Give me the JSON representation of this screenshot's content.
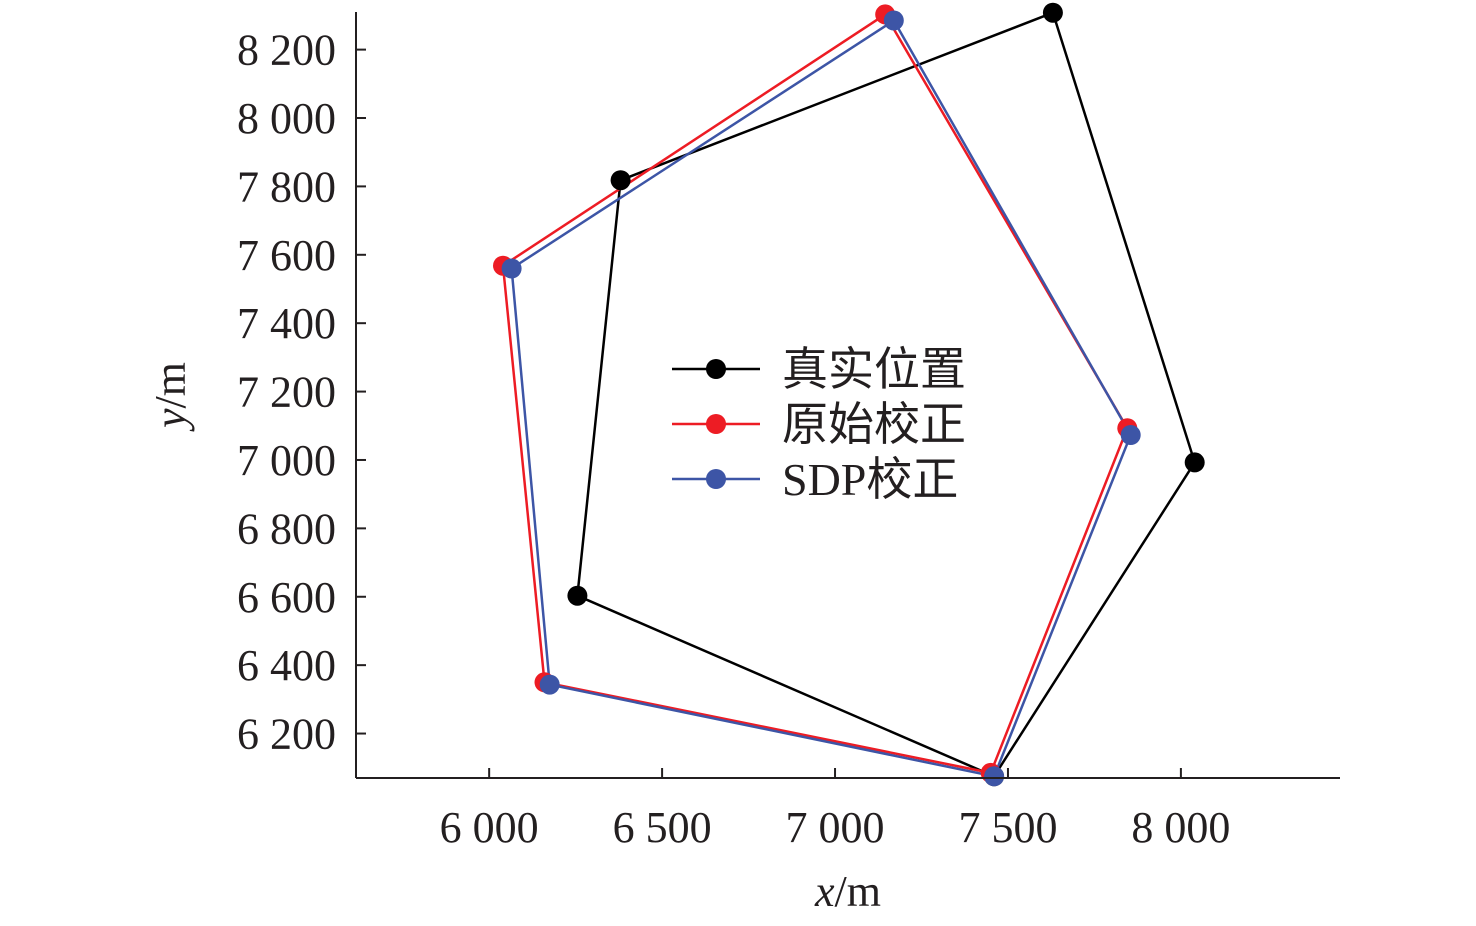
{
  "chart_data": {
    "type": "scatter",
    "xlabel_var": "x",
    "xlabel_unit": "/m",
    "ylabel_var": "y",
    "ylabel_unit": "/m",
    "xlim": [
      5615,
      8460
    ],
    "ylim": [
      6070,
      8310
    ],
    "x_ticks": [
      6000,
      6500,
      7000,
      7500,
      8000
    ],
    "x_tick_labels": [
      "6 000",
      "6 500",
      "7 000",
      "7 500",
      "8 000"
    ],
    "y_ticks": [
      6200,
      6400,
      6600,
      6800,
      7000,
      7200,
      7400,
      7600,
      7800,
      8000,
      8200
    ],
    "y_tick_labels": [
      "6 200",
      "6 400",
      "6 600",
      "6 800",
      "7 000",
      "7 200",
      "7 400",
      "7 600",
      "7 800",
      "8 000",
      "8 200"
    ],
    "grid": false,
    "legend_position": "center",
    "closed_polygon": true,
    "series": [
      {
        "name": "真实位置",
        "color": "#000000",
        "points": [
          [
            7630,
            8308
          ],
          [
            8040,
            6993
          ],
          [
            7460,
            6075
          ],
          [
            6255,
            6603
          ],
          [
            6380,
            7818
          ]
        ]
      },
      {
        "name": "原始校正",
        "color": "#ed1c24",
        "points": [
          [
            7145,
            8303
          ],
          [
            7845,
            7093
          ],
          [
            7450,
            6085
          ],
          [
            6160,
            6350
          ],
          [
            6040,
            7568
          ]
        ]
      },
      {
        "name": "SDP校正",
        "color": "#3d55a6",
        "points": [
          [
            7170,
            8285
          ],
          [
            7855,
            7073
          ],
          [
            7460,
            6075
          ],
          [
            6175,
            6343
          ],
          [
            6065,
            7560
          ]
        ]
      }
    ]
  }
}
